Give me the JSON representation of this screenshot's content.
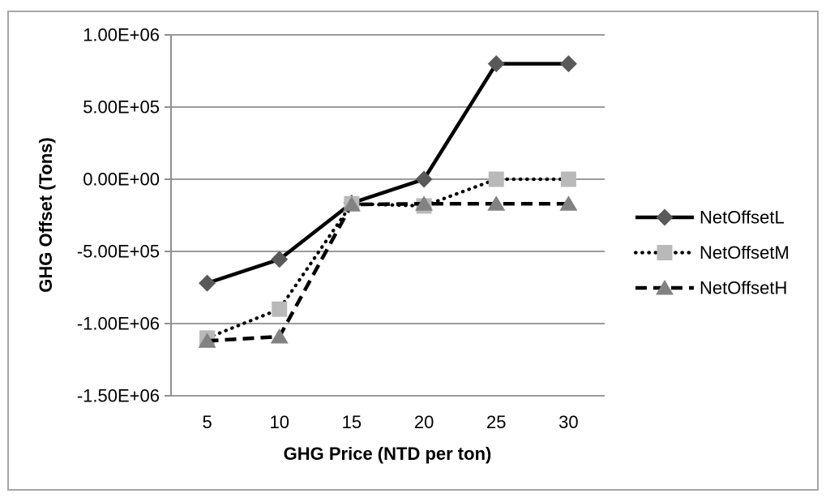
{
  "chart_data": {
    "type": "line",
    "title": "",
    "xlabel": "GHG Price (NTD per ton)",
    "ylabel": "GHG Offset (Tons)",
    "x": [
      5,
      10,
      15,
      20,
      25,
      30
    ],
    "x_tick_labels": [
      "5",
      "10",
      "15",
      "20",
      "25",
      "30"
    ],
    "ylim": [
      -1500000,
      1000000
    ],
    "ytick_values": [
      1000000,
      500000,
      0,
      -500000,
      -1000000,
      -1500000
    ],
    "ytick_labels": [
      "1.00E+06",
      "5.00E+05",
      "0.00E+00",
      "-5.00E+05",
      "-1.00E+06",
      "-1.50E+06"
    ],
    "grid": true,
    "legend_position": "right",
    "series": [
      {
        "name": "NetOffsetL",
        "values": [
          -720000,
          -555000,
          -165000,
          0,
          800000,
          800000
        ],
        "line_style": "solid",
        "line_color": "#000000",
        "marker": "diamond",
        "marker_color": "#595959"
      },
      {
        "name": "NetOffsetM",
        "values": [
          -1100000,
          -900000,
          -170000,
          -185000,
          0,
          0
        ],
        "line_style": "dotted",
        "line_color": "#000000",
        "marker": "square",
        "marker_color": "#b9b9b9"
      },
      {
        "name": "NetOffsetH",
        "values": [
          -1120000,
          -1090000,
          -175000,
          -170000,
          -170000,
          -170000
        ],
        "line_style": "dashed",
        "line_color": "#000000",
        "marker": "triangle",
        "marker_color": "#828282"
      }
    ]
  },
  "colors": {
    "frame_border": "#a6a6a6",
    "axis_line": "#8f8f8f",
    "gridline": "#9b9b9b",
    "text": "#000000",
    "background": "#ffffff"
  }
}
